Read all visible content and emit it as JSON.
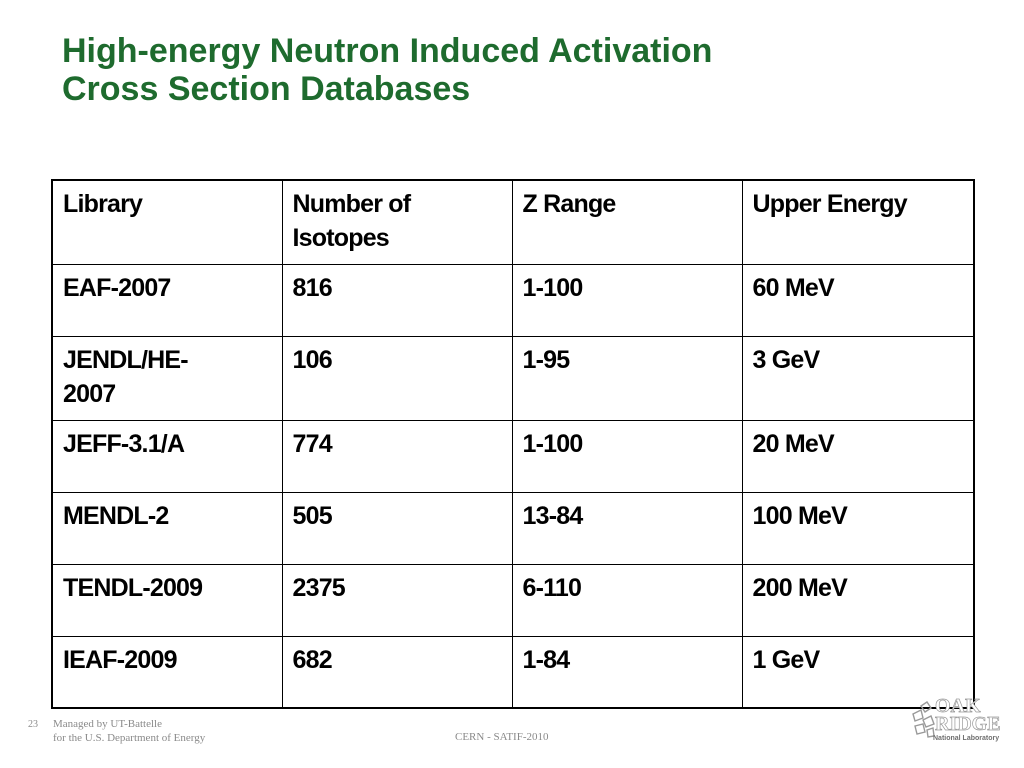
{
  "title": {
    "line1": "High-energy Neutron Induced Activation",
    "line2": "Cross Section Databases"
  },
  "table": {
    "headers": [
      "Library",
      "Number of Isotopes",
      "Z Range",
      "Upper Energy"
    ],
    "rows": [
      [
        "EAF-2007",
        "816",
        "1-100",
        "60 MeV"
      ],
      [
        "JENDL/HE-2007",
        "106",
        "1-95",
        "3 GeV"
      ],
      [
        "JEFF-3.1/A",
        "774",
        "1-100",
        "20 MeV"
      ],
      [
        "MENDL-2",
        "505",
        "13-84",
        "100 MeV"
      ],
      [
        "TENDL-2009",
        "2375",
        "6-110",
        "200 MeV"
      ],
      [
        "IEAF-2009",
        "682",
        "1-84",
        "1 GeV"
      ]
    ]
  },
  "footer": {
    "slide_number": "23",
    "managed_line1": "Managed by UT-Battelle",
    "managed_line2": "for the U.S. Department of Energy",
    "center": "CERN - SATIF-2010"
  },
  "logo": {
    "name": "oak-ridge-logo",
    "line1": "OAK",
    "line2": "RIDGE",
    "line3": "National Laboratory"
  },
  "colors": {
    "title": "#1e6b2e",
    "footer_text": "#8a8a8a"
  }
}
